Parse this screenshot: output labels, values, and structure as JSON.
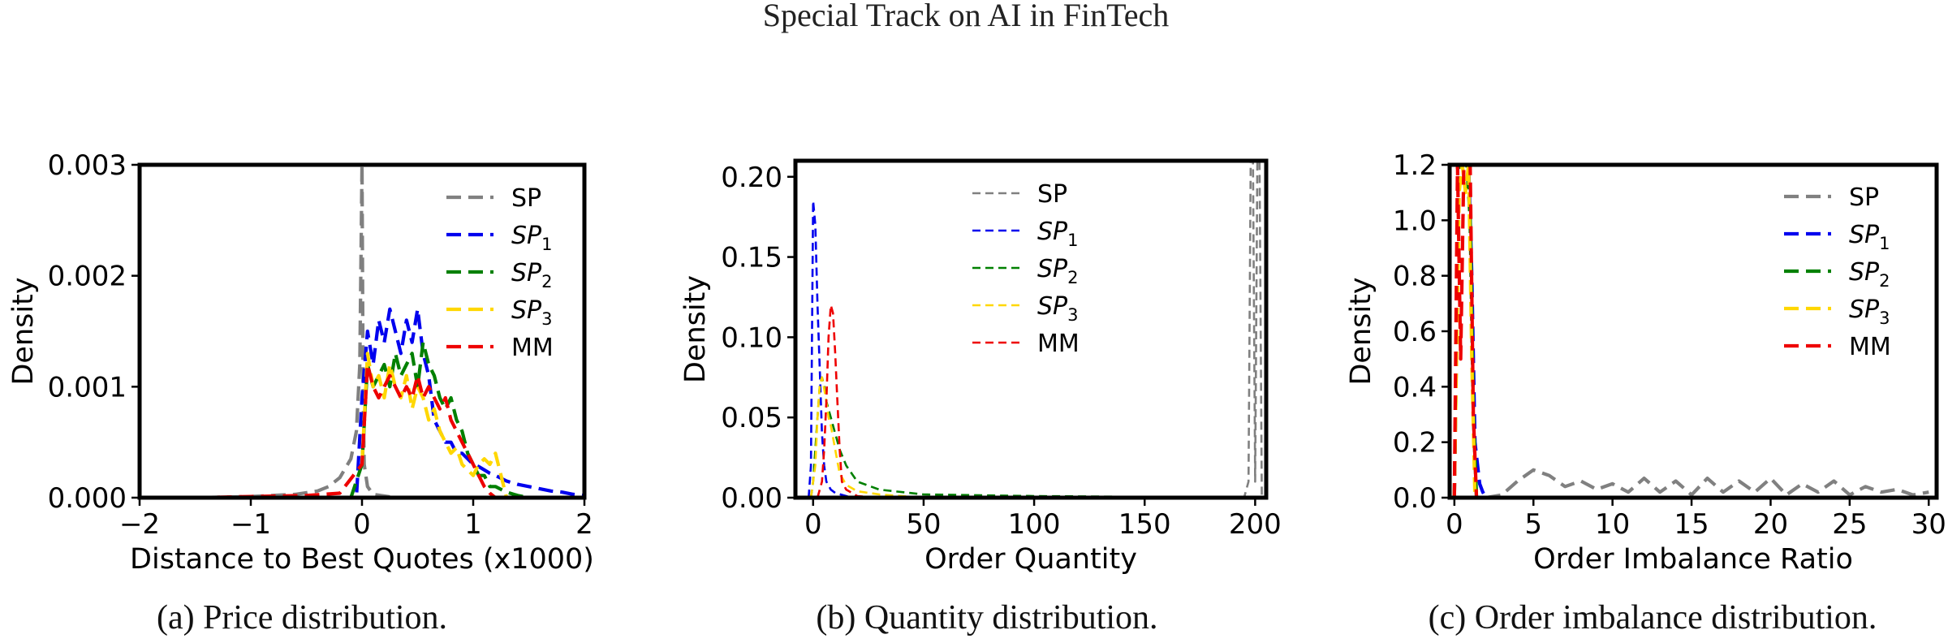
{
  "page": {
    "header": "Special Track on AI in FinTech"
  },
  "colors": {
    "SP": "#808080",
    "SP1": "#0000ee",
    "SP2": "#008000",
    "SP3": "#ffd700",
    "MM": "#ee0000"
  },
  "chart_data": [
    {
      "type": "line",
      "caption": "(a) Price distribution.",
      "xlabel": "Distance to Best Quotes (x1000)",
      "ylabel": "Density",
      "xlim": [
        -2,
        2
      ],
      "ylim": [
        0,
        0.003
      ],
      "xticks": [
        -2,
        -1,
        0,
        1,
        2
      ],
      "xtick_labels": [
        "−2",
        "−1",
        "0",
        "1",
        "2"
      ],
      "yticks": [
        0,
        0.001,
        0.002,
        0.003
      ],
      "ytick_labels": [
        "0.000",
        "0.001",
        "0.002",
        "0.003"
      ],
      "legend": [
        {
          "key": "SP",
          "base": "SP",
          "sub": "",
          "italic": false
        },
        {
          "key": "SP1",
          "base": "SP",
          "sub": "1",
          "italic": true
        },
        {
          "key": "SP2",
          "base": "SP",
          "sub": "2",
          "italic": true
        },
        {
          "key": "SP3",
          "base": "SP",
          "sub": "3",
          "italic": true
        },
        {
          "key": "MM",
          "base": "MM",
          "sub": "",
          "italic": false
        }
      ],
      "series": [
        {
          "name": "SP",
          "key": "SP",
          "x": [
            -2,
            -1.5,
            -1,
            -0.6,
            -0.4,
            -0.3,
            -0.2,
            -0.1,
            -0.05,
            -0.02,
            0,
            0.01,
            0.02,
            0.05,
            0.1,
            0.3,
            1,
            2
          ],
          "y": [
            0,
            0,
            1e-05,
            3e-05,
            6e-05,
            0.0001,
            0.00018,
            0.00035,
            0.0006,
            0.0012,
            0.003,
            0.0009,
            0.0003,
            0.0001,
            3e-05,
            0,
            0,
            0
          ]
        },
        {
          "name": "SP1",
          "key": "SP1",
          "x": [
            -0.2,
            -0.05,
            0,
            0.05,
            0.1,
            0.15,
            0.2,
            0.25,
            0.3,
            0.35,
            0.4,
            0.45,
            0.5,
            0.55,
            0.6,
            0.65,
            0.7,
            0.75,
            0.8,
            0.85,
            0.9,
            0.95,
            1,
            1.05,
            1.1,
            1.15,
            1.2,
            1.3,
            1.4,
            1.5,
            1.6,
            1.7,
            1.8,
            1.9,
            2
          ],
          "y": [
            0,
            0,
            0.0009,
            0.0015,
            0.0012,
            0.0016,
            0.0014,
            0.0017,
            0.0015,
            0.0013,
            0.0016,
            0.0014,
            0.0017,
            0.0013,
            0.0011,
            0.0007,
            0.0006,
            0.0005,
            0.0005,
            0.0004,
            0.0004,
            0.00035,
            0.0003,
            0.00028,
            0.00025,
            0.00022,
            0.0002,
            0.00015,
            0.00012,
            0.0001,
            8e-05,
            6e-05,
            5e-05,
            3e-05,
            2e-05
          ]
        },
        {
          "name": "SP2",
          "key": "SP2",
          "x": [
            -0.1,
            0,
            0.05,
            0.1,
            0.15,
            0.2,
            0.25,
            0.3,
            0.35,
            0.4,
            0.45,
            0.5,
            0.55,
            0.6,
            0.65,
            0.7,
            0.75,
            0.8,
            0.85,
            0.9,
            0.95,
            1,
            1.05,
            1.1,
            1.15,
            1.2,
            1.3,
            1.4,
            1.5
          ],
          "y": [
            0,
            0.0003,
            0.0012,
            0.001,
            0.0011,
            0.0012,
            0.001,
            0.0013,
            0.0011,
            0.0012,
            0.0013,
            0.001,
            0.0014,
            0.0012,
            0.0011,
            0.0009,
            0.0008,
            0.0009,
            0.0007,
            0.0006,
            0.0004,
            0.0003,
            0.0002,
            0.0002,
            0.0001,
            0.0001,
            5e-05,
            2e-05,
            0
          ]
        },
        {
          "name": "SP3",
          "key": "SP3",
          "x": [
            0,
            0.05,
            0.1,
            0.15,
            0.2,
            0.25,
            0.3,
            0.35,
            0.4,
            0.45,
            0.5,
            0.55,
            0.6,
            0.65,
            0.7,
            0.75,
            0.8,
            0.85,
            0.9,
            0.95,
            1,
            1.05,
            1.1,
            1.15,
            1.2,
            1.25,
            1.3
          ],
          "y": [
            0.0003,
            0.0013,
            0.001,
            0.0011,
            0.0009,
            0.0012,
            0.001,
            0.0009,
            0.0011,
            0.0008,
            0.001,
            0.0009,
            0.0007,
            0.0008,
            0.0006,
            0.0005,
            0.0004,
            0.00045,
            0.0003,
            0.00025,
            0.0002,
            0.0003,
            0.00035,
            0.0003,
            0.0004,
            0.0002,
            0
          ]
        },
        {
          "name": "MM",
          "key": "MM",
          "x": [
            -1.5,
            -1,
            -0.5,
            -0.2,
            0,
            0.05,
            0.1,
            0.15,
            0.2,
            0.25,
            0.3,
            0.35,
            0.4,
            0.45,
            0.5,
            0.55,
            0.6,
            0.65,
            0.7,
            0.75,
            0.8,
            0.85,
            0.9,
            0.95,
            1,
            1.05,
            1.1,
            1.15,
            1.2
          ],
          "y": [
            0,
            1e-05,
            2e-05,
            4e-05,
            0.0003,
            0.0012,
            0.001,
            0.0009,
            0.001,
            0.0011,
            0.001,
            0.0009,
            0.001,
            0.0009,
            0.0011,
            0.0009,
            0.001,
            0.0009,
            0.0008,
            0.0009,
            0.0007,
            0.0006,
            0.0005,
            0.0004,
            0.0003,
            0.0002,
            0.0001,
            4e-05,
            0
          ]
        }
      ]
    },
    {
      "type": "line",
      "caption": "(b) Quantity distribution.",
      "xlabel": "Order Quantity",
      "ylabel": "Density",
      "xlim": [
        -8,
        205
      ],
      "ylim": [
        0,
        0.21
      ],
      "xticks": [
        0,
        50,
        100,
        150,
        200
      ],
      "xtick_labels": [
        "0",
        "50",
        "100",
        "150",
        "200"
      ],
      "yticks": [
        0,
        0.05,
        0.1,
        0.15,
        0.2
      ],
      "ytick_labels": [
        "0.00",
        "0.05",
        "0.10",
        "0.15",
        "0.20"
      ],
      "legend": [
        {
          "key": "SP",
          "base": "SP",
          "sub": "",
          "italic": false
        },
        {
          "key": "SP1",
          "base": "SP",
          "sub": "1",
          "italic": true
        },
        {
          "key": "SP2",
          "base": "SP",
          "sub": "2",
          "italic": true
        },
        {
          "key": "SP3",
          "base": "SP",
          "sub": "3",
          "italic": true
        },
        {
          "key": "MM",
          "base": "MM",
          "sub": "",
          "italic": false
        }
      ],
      "series": [
        {
          "name": "SP",
          "key": "SP",
          "x": [
            0,
            100,
            195,
            197,
            198,
            199,
            200,
            201,
            202,
            203
          ],
          "y": [
            0,
            0,
            0,
            0.01,
            0.21,
            0.21,
            0.01,
            0.21,
            0.21,
            0
          ]
        },
        {
          "name": "SP1",
          "key": "SP1",
          "x": [
            -2,
            -1,
            0,
            1,
            2,
            3,
            4,
            5,
            6,
            8,
            10,
            15,
            20,
            30
          ],
          "y": [
            0,
            0.02,
            0.185,
            0.17,
            0.12,
            0.08,
            0.04,
            0.02,
            0.01,
            0.005,
            0.003,
            0.001,
            0,
            0
          ]
        },
        {
          "name": "SP2",
          "key": "SP2",
          "x": [
            -1,
            0,
            1,
            2,
            3,
            4,
            5,
            6,
            7,
            8,
            10,
            12,
            15,
            20,
            30,
            50,
            100,
            200
          ],
          "y": [
            0,
            0.01,
            0.03,
            0.05,
            0.07,
            0.075,
            0.07,
            0.06,
            0.055,
            0.05,
            0.04,
            0.03,
            0.02,
            0.01,
            0.005,
            0.002,
            0.001,
            0
          ]
        },
        {
          "name": "SP3",
          "key": "SP3",
          "x": [
            -1,
            0,
            1,
            2,
            3,
            4,
            5,
            6,
            7,
            8,
            10,
            12,
            15,
            20,
            30,
            50
          ],
          "y": [
            0,
            0.01,
            0.02,
            0.05,
            0.07,
            0.075,
            0.068,
            0.06,
            0.05,
            0.045,
            0.03,
            0.015,
            0.008,
            0.004,
            0.002,
            0
          ]
        },
        {
          "name": "MM",
          "key": "MM",
          "x": [
            2,
            4,
            5,
            6,
            7,
            8,
            9,
            10,
            11,
            12,
            13,
            15,
            20,
            30,
            50
          ],
          "y": [
            0,
            0.01,
            0.03,
            0.06,
            0.1,
            0.12,
            0.115,
            0.09,
            0.06,
            0.03,
            0.01,
            0.005,
            0.001,
            0,
            0
          ]
        }
      ]
    },
    {
      "type": "line",
      "caption": "(c) Order imbalance distribution.",
      "xlabel": "Order Imbalance Ratio",
      "ylabel": "Density",
      "xlim": [
        -0.3,
        30.5
      ],
      "ylim": [
        0,
        1.2
      ],
      "xticks": [
        0,
        5,
        10,
        15,
        20,
        25,
        30
      ],
      "xtick_labels": [
        "0",
        "5",
        "10",
        "15",
        "20",
        "25",
        "30"
      ],
      "yticks": [
        0,
        0.2,
        0.4,
        0.6,
        0.8,
        1.0,
        1.2
      ],
      "ytick_labels": [
        "0.0",
        "0.2",
        "0.4",
        "0.6",
        "0.8",
        "1.0",
        "1.2"
      ],
      "legend": [
        {
          "key": "SP",
          "base": "SP",
          "sub": "",
          "italic": false
        },
        {
          "key": "SP1",
          "base": "SP",
          "sub": "1",
          "italic": true
        },
        {
          "key": "SP2",
          "base": "SP",
          "sub": "2",
          "italic": true
        },
        {
          "key": "SP3",
          "base": "SP",
          "sub": "3",
          "italic": true
        },
        {
          "key": "MM",
          "base": "MM",
          "sub": "",
          "italic": false
        }
      ],
      "series": [
        {
          "name": "SP",
          "key": "SP",
          "x": [
            2,
            3,
            4,
            5,
            6,
            7,
            8,
            9,
            10,
            11,
            12,
            13,
            14,
            15,
            16,
            17,
            18,
            19,
            20,
            21,
            22,
            23,
            24,
            25,
            26,
            27,
            28,
            29,
            30
          ],
          "y": [
            0,
            0.01,
            0.06,
            0.1,
            0.08,
            0.04,
            0.06,
            0.03,
            0.05,
            0.02,
            0.07,
            0.02,
            0.06,
            0.01,
            0.07,
            0.02,
            0.06,
            0.02,
            0.07,
            0.01,
            0.05,
            0.02,
            0.06,
            0.01,
            0.04,
            0.02,
            0.03,
            0.01,
            0.02
          ]
        },
        {
          "name": "SP1",
          "key": "SP1",
          "x": [
            0,
            0.3,
            0.5,
            0.7,
            0.9,
            1.1,
            1.3,
            1.6,
            1.8,
            2.0
          ],
          "y": [
            0,
            1.2,
            1.2,
            1.2,
            1.2,
            0.8,
            0.2,
            0.05,
            0.02,
            0
          ]
        },
        {
          "name": "SP2",
          "key": "SP2",
          "x": [
            0,
            0.3,
            0.5,
            0.8,
            1.0,
            1.2,
            1.4
          ],
          "y": [
            0,
            1.2,
            1.2,
            1.2,
            1.0,
            0.3,
            0
          ]
        },
        {
          "name": "SP3",
          "key": "SP3",
          "x": [
            0,
            0.3,
            0.5,
            0.7,
            0.9,
            1.1,
            1.3
          ],
          "y": [
            0,
            1.1,
            1.2,
            1.1,
            1.2,
            0.5,
            0
          ]
        },
        {
          "name": "MM",
          "key": "MM",
          "x": [
            0,
            0.2,
            0.4,
            0.6,
            0.8,
            1.0,
            1.2,
            1.4
          ],
          "y": [
            0,
            1.2,
            0.5,
            1.2,
            1.2,
            1.2,
            0.3,
            0
          ]
        }
      ]
    }
  ]
}
